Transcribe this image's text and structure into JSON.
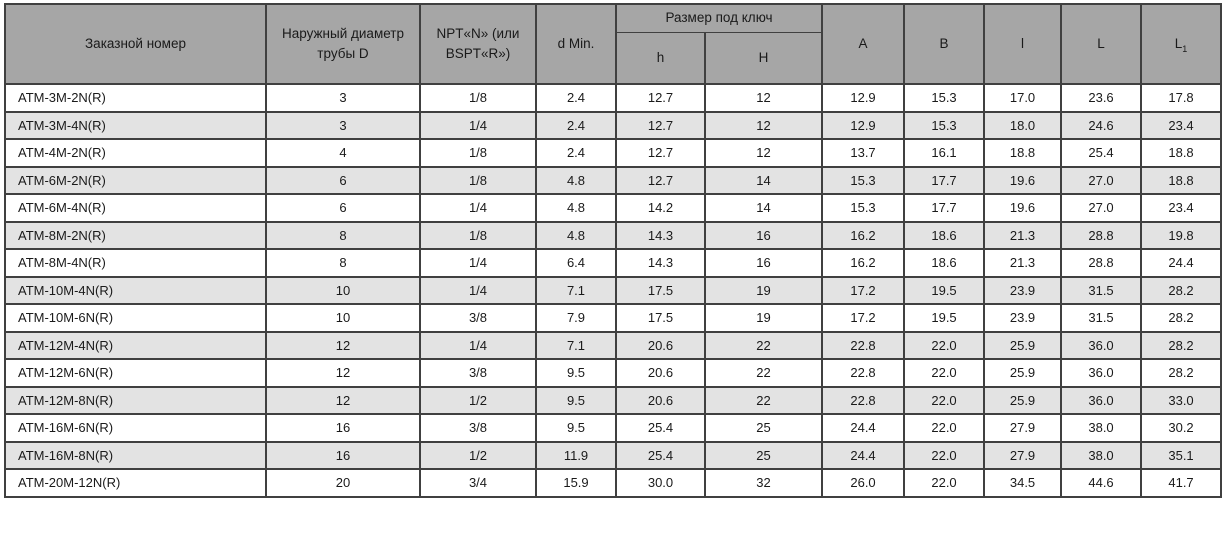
{
  "table": {
    "headers": {
      "order_number": "Заказной номер",
      "outer_diameter": "Наружный диаметр трубы D",
      "npt": "NPT«N» (или BSPT«R»)",
      "d_min": "d Min.",
      "wrench_size_group": "Размер под ключ",
      "h_small": "h",
      "h_big": "H",
      "a": "A",
      "b": "B",
      "l_small": "l",
      "l_big": "L",
      "l1_base": "L",
      "l1_sub": "1"
    },
    "rows": [
      [
        "ATM-3M-2N(R)",
        "3",
        "1/8",
        "2.4",
        "12.7",
        "12",
        "12.9",
        "15.3",
        "17.0",
        "23.6",
        "17.8"
      ],
      [
        "ATM-3M-4N(R)",
        "3",
        "1/4",
        "2.4",
        "12.7",
        "12",
        "12.9",
        "15.3",
        "18.0",
        "24.6",
        "23.4"
      ],
      [
        "ATM-4M-2N(R)",
        "4",
        "1/8",
        "2.4",
        "12.7",
        "12",
        "13.7",
        "16.1",
        "18.8",
        "25.4",
        "18.8"
      ],
      [
        "ATM-6M-2N(R)",
        "6",
        "1/8",
        "4.8",
        "12.7",
        "14",
        "15.3",
        "17.7",
        "19.6",
        "27.0",
        "18.8"
      ],
      [
        "ATM-6M-4N(R)",
        "6",
        "1/4",
        "4.8",
        "14.2",
        "14",
        "15.3",
        "17.7",
        "19.6",
        "27.0",
        "23.4"
      ],
      [
        "ATM-8M-2N(R)",
        "8",
        "1/8",
        "4.8",
        "14.3",
        "16",
        "16.2",
        "18.6",
        "21.3",
        "28.8",
        "19.8"
      ],
      [
        "ATM-8M-4N(R)",
        "8",
        "1/4",
        "6.4",
        "14.3",
        "16",
        "16.2",
        "18.6",
        "21.3",
        "28.8",
        "24.4"
      ],
      [
        "ATM-10M-4N(R)",
        "10",
        "1/4",
        "7.1",
        "17.5",
        "19",
        "17.2",
        "19.5",
        "23.9",
        "31.5",
        "28.2"
      ],
      [
        "ATM-10M-6N(R)",
        "10",
        "3/8",
        "7.9",
        "17.5",
        "19",
        "17.2",
        "19.5",
        "23.9",
        "31.5",
        "28.2"
      ],
      [
        "ATM-12M-4N(R)",
        "12",
        "1/4",
        "7.1",
        "20.6",
        "22",
        "22.8",
        "22.0",
        "25.9",
        "36.0",
        "28.2"
      ],
      [
        "ATM-12M-6N(R)",
        "12",
        "3/8",
        "9.5",
        "20.6",
        "22",
        "22.8",
        "22.0",
        "25.9",
        "36.0",
        "28.2"
      ],
      [
        "ATM-12M-8N(R)",
        "12",
        "1/2",
        "9.5",
        "20.6",
        "22",
        "22.8",
        "22.0",
        "25.9",
        "36.0",
        "33.0"
      ],
      [
        "ATM-16M-6N(R)",
        "16",
        "3/8",
        "9.5",
        "25.4",
        "25",
        "24.4",
        "22.0",
        "27.9",
        "38.0",
        "30.2"
      ],
      [
        "ATM-16M-8N(R)",
        "16",
        "1/2",
        "11.9",
        "25.4",
        "25",
        "24.4",
        "22.0",
        "27.9",
        "38.0",
        "35.1"
      ],
      [
        "ATM-20M-12N(R)",
        "20",
        "3/4",
        "15.9",
        "30.0",
        "32",
        "26.0",
        "22.0",
        "34.5",
        "44.6",
        "41.7"
      ]
    ]
  },
  "colors": {
    "header_bg": "#a6a6a6",
    "row_alt_bg": "#e3e3e3",
    "border": "#404040"
  }
}
